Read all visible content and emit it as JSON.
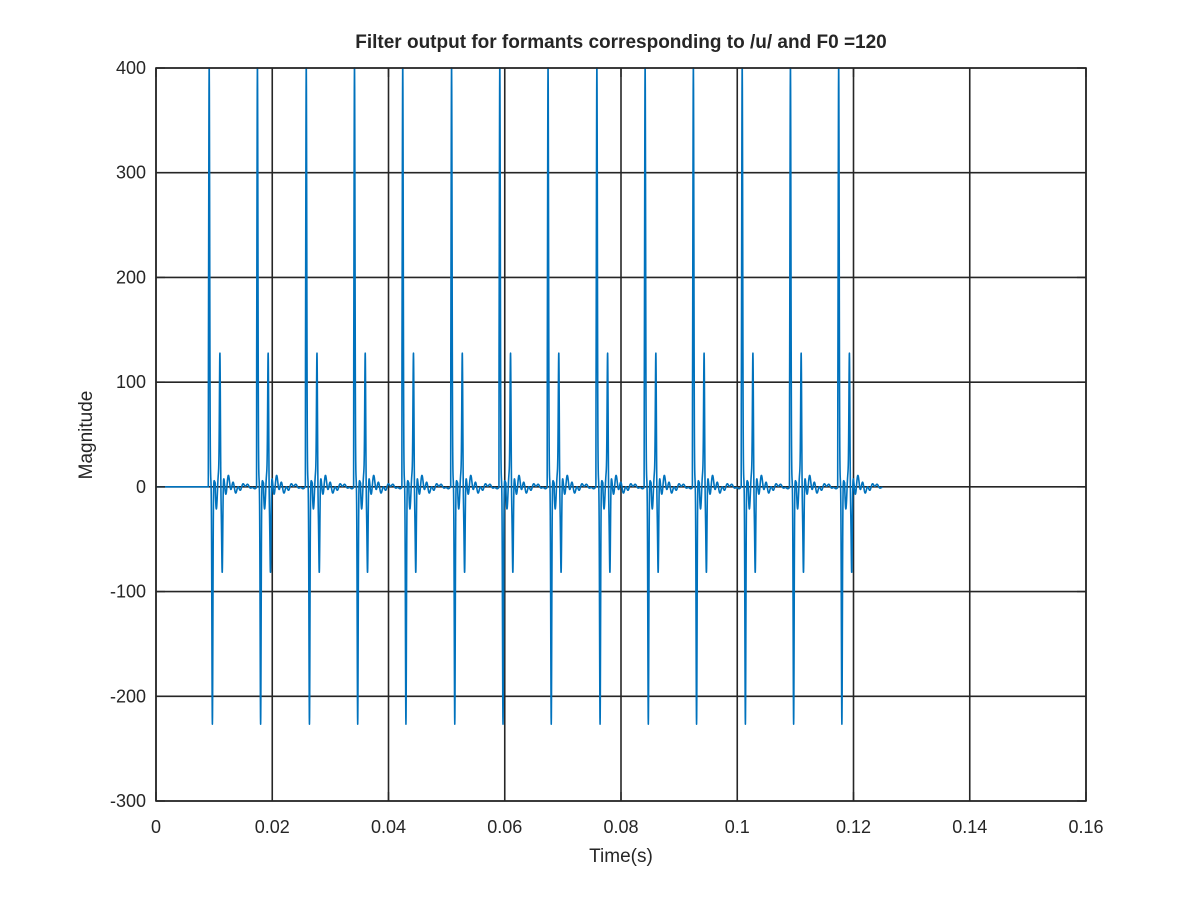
{
  "chart_data": {
    "type": "line",
    "title": "Filter output for formants corresponding to /u/ and F0 =120",
    "xlabel": "Time(s)",
    "ylabel": "Magnitude",
    "xlim": [
      0,
      0.16
    ],
    "ylim": [
      -300,
      400
    ],
    "xticks": [
      0,
      0.02,
      0.04,
      0.06,
      0.08,
      0.1,
      0.12,
      0.14,
      0.16
    ],
    "yticks": [
      -300,
      -200,
      -100,
      0,
      100,
      200,
      300,
      400
    ],
    "xtick_labels": [
      "0",
      "0.02",
      "0.04",
      "0.06",
      "0.08",
      "0.1",
      "0.12",
      "0.14",
      "0.16"
    ],
    "ytick_labels": [
      "-300",
      "-200",
      "-100",
      "0",
      "100",
      "200",
      "300",
      "400"
    ],
    "grid": true,
    "legend": "none",
    "series": [
      {
        "color": "#0072BD",
        "signal_start": 0.0,
        "signal_end": 0.125,
        "pulse_times": [
          0.009,
          0.0173,
          0.0257,
          0.034,
          0.0423,
          0.0507,
          0.059,
          0.0673,
          0.0757,
          0.084,
          0.0923,
          0.1007,
          0.109,
          0.1173
        ],
        "pulse_peak_max": 400,
        "pulse_trough_min": -235,
        "secondary_peak": 133,
        "secondary_trough": -75,
        "ringing_level": 47
      }
    ]
  },
  "colors": {
    "line": "#0072BD",
    "grid": "#262626",
    "axis": "#262626",
    "background": "#ffffff"
  }
}
